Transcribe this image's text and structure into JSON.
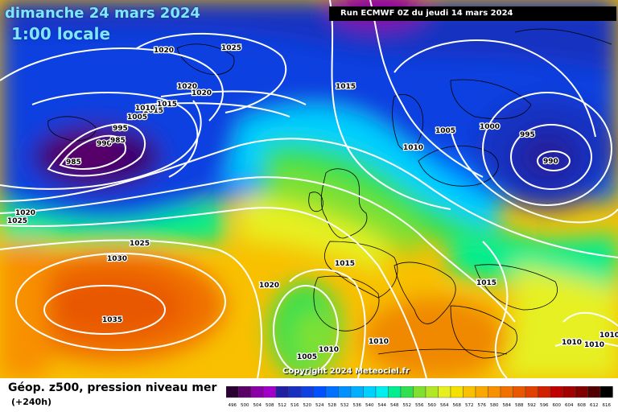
{
  "header": {
    "date": "dimanche 24 mars 2024",
    "time": "1:00 locale",
    "run": "Run ECMWF 0Z du jeudi 14 mars 2024"
  },
  "copyright": "Copyright 2024 Meteociel.fr",
  "legend": {
    "title": "Géop. z500, pression niveau mer",
    "subtitle": "(+240h)",
    "values": [
      "496",
      "500",
      "504",
      "508",
      "512",
      "516",
      "520",
      "524",
      "528",
      "532",
      "536",
      "540",
      "544",
      "548",
      "552",
      "556",
      "560",
      "564",
      "568",
      "572",
      "576",
      "580",
      "584",
      "588",
      "592",
      "596",
      "600",
      "604",
      "608",
      "612",
      "616"
    ],
    "colors": [
      "#2a0033",
      "#5a0068",
      "#8a00a6",
      "#a000c8",
      "#2020a0",
      "#1830c0",
      "#1040e0",
      "#0050ff",
      "#0070ff",
      "#0090ff",
      "#00b0ff",
      "#00d0ff",
      "#00eeee",
      "#00ee90",
      "#30e050",
      "#80e030",
      "#b0e828",
      "#e6f020",
      "#f6e000",
      "#f8c000",
      "#f8a800",
      "#f89000",
      "#f07000",
      "#e85800",
      "#e04000",
      "#d02000",
      "#c00000",
      "#a00000",
      "#800000",
      "#500000",
      "#000000"
    ]
  },
  "isobar_labels": [
    "1020",
    "1025",
    "1015",
    "1020",
    "1020",
    "1015",
    "1010",
    "1005",
    "1000",
    "995",
    "990",
    "985",
    "985",
    "1010",
    "1005",
    "1000",
    "995",
    "990",
    "1020",
    "1025",
    "1025",
    "1030",
    "1035",
    "1020",
    "1015",
    "1015",
    "1010",
    "1005",
    "1010",
    "1015",
    "1010",
    "1010",
    "1010"
  ]
}
